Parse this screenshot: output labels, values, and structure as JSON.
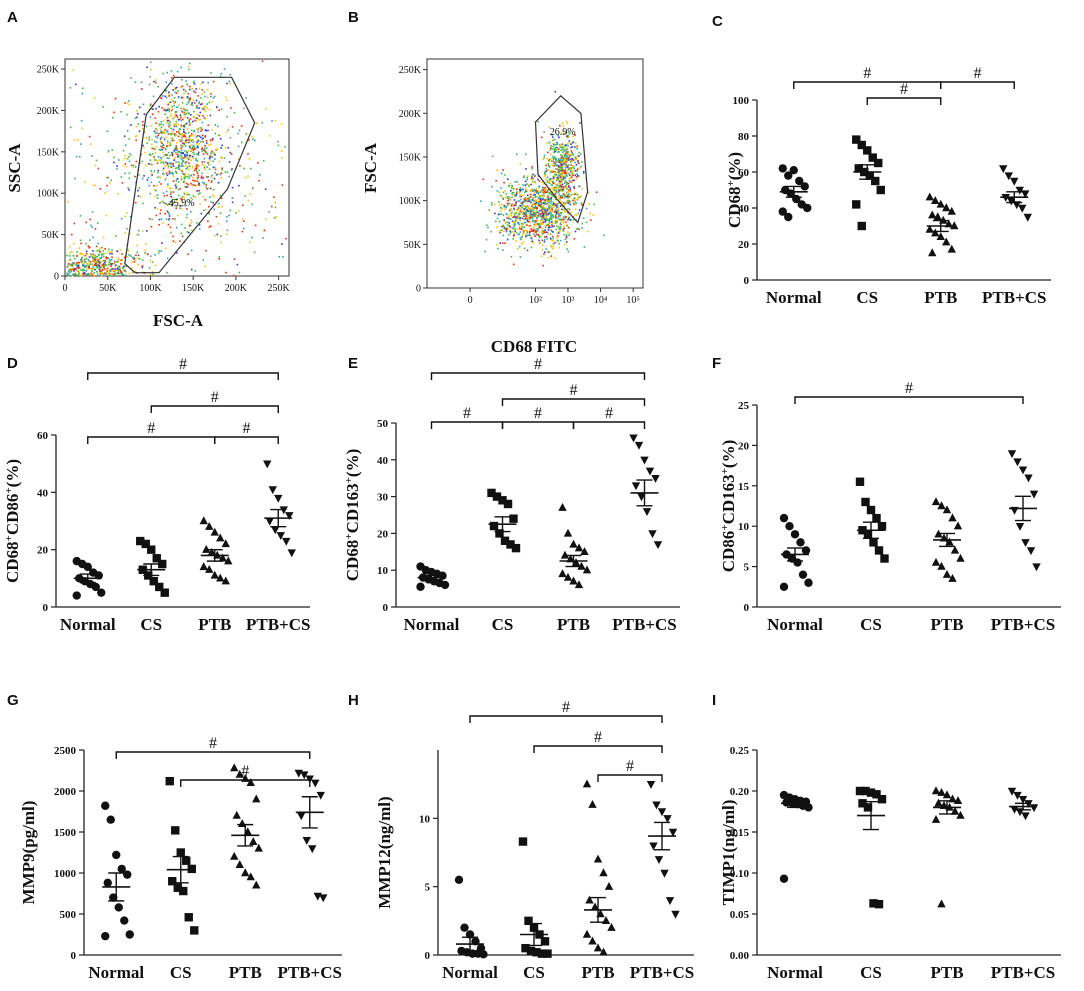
{
  "figure": {
    "panel_count": 9
  },
  "chart_data": [
    {
      "id": "A",
      "type": "scatter",
      "subtype": "flow-density",
      "xlabel": "FSC-A",
      "ylabel": "SSC-A",
      "xlim": [
        0,
        262144
      ],
      "ylim": [
        0,
        262144
      ],
      "x_ticks": [
        "0",
        "50K",
        "100K",
        "150K",
        "200K",
        "250K"
      ],
      "x_tick_values": [
        0,
        50000,
        100000,
        150000,
        200000,
        250000
      ],
      "y_ticks": [
        "0",
        "50K",
        "100K",
        "150K",
        "200K",
        "250K"
      ],
      "y_tick_values": [
        0,
        50000,
        100000,
        150000,
        200000,
        250000
      ],
      "gate_label": "45.9%",
      "gate_polygon": [
        [
          70000,
          15000
        ],
        [
          95000,
          195000
        ],
        [
          128000,
          240000
        ],
        [
          195000,
          240000
        ],
        [
          222000,
          185000
        ],
        [
          190000,
          105000
        ],
        [
          110000,
          4000
        ],
        [
          82000,
          4000
        ]
      ],
      "populations": [
        {
          "cx": 135000,
          "cy": 160000,
          "sx": 25000,
          "sy": 45000,
          "n": 900
        },
        {
          "cx": 30000,
          "cy": 10000,
          "sx": 30000,
          "sy": 12000,
          "n": 700
        },
        {
          "cx": 130000,
          "cy": 110000,
          "sx": 90000,
          "sy": 80000,
          "n": 500
        }
      ]
    },
    {
      "id": "B",
      "type": "scatter",
      "subtype": "flow-density",
      "xlabel": "CD68 FITC",
      "ylabel": "FSC-A",
      "xscale": "log",
      "xlim": [
        -20,
        200000
      ],
      "ylim": [
        0,
        262144
      ],
      "x_ticks": [
        "0",
        "10²",
        "10³",
        "10⁴",
        "10⁵"
      ],
      "x_tick_values": [
        0,
        100,
        1000,
        10000,
        100000
      ],
      "y_ticks": [
        "0",
        "50K",
        "100K",
        "150K",
        "200K",
        "250K"
      ],
      "y_tick_values": [
        0,
        50000,
        100000,
        150000,
        200000,
        250000
      ],
      "gate_label": "26.9%",
      "gate_polygon": [
        [
          100,
          190000
        ],
        [
          600,
          220000
        ],
        [
          2500,
          200000
        ],
        [
          4000,
          110000
        ],
        [
          2000,
          75000
        ],
        [
          500,
          100000
        ],
        [
          120,
          130000
        ]
      ],
      "populations": [
        {
          "cx": 110,
          "cy": 88000,
          "sx": 0.65,
          "sy": 20000,
          "n": 1100
        },
        {
          "cx": 650,
          "cy": 140000,
          "sx": 0.25,
          "sy": 20000,
          "n": 500
        }
      ]
    },
    {
      "id": "C",
      "type": "scatter",
      "subtype": "dot-plot",
      "ylabel_main": "CD68",
      "ylabel_sup": "+",
      "ylabel_unit": "(%)",
      "categories": [
        "Normal",
        "CS",
        "PTB",
        "PTB+CS"
      ],
      "ylim": [
        0,
        100
      ],
      "yticks": [
        0,
        20,
        40,
        60,
        80,
        100
      ],
      "series": [
        {
          "name": "Normal",
          "marker": "circle",
          "values": [
            62,
            58,
            61,
            55,
            52,
            50,
            48,
            45,
            42,
            40,
            38,
            35
          ],
          "mean": 49,
          "sem": 3
        },
        {
          "name": "CS",
          "marker": "square",
          "values": [
            78,
            75,
            72,
            68,
            65,
            62,
            60,
            58,
            55,
            50,
            42,
            30
          ],
          "mean": 60,
          "sem": 4
        },
        {
          "name": "PTB",
          "marker": "triangle-up",
          "values": [
            46,
            44,
            42,
            40,
            38,
            36,
            35,
            33,
            31,
            30,
            28,
            26,
            24,
            21,
            17,
            15
          ],
          "mean": 30,
          "sem": 3
        },
        {
          "name": "PTB+CS",
          "marker": "triangle-down",
          "values": [
            62,
            58,
            55,
            50,
            48,
            46,
            44,
            42,
            40,
            35
          ],
          "mean": 46,
          "sem": 3
        }
      ],
      "significance": [
        {
          "from": 0,
          "to": 2,
          "label": "#",
          "level": 1
        },
        {
          "from": 1,
          "to": 2,
          "label": "#",
          "level": 0
        },
        {
          "from": 2,
          "to": 3,
          "label": "#",
          "level": 1
        }
      ]
    },
    {
      "id": "D",
      "type": "scatter",
      "subtype": "dot-plot",
      "ylabel_main": "CD68",
      "ylabel_sup": "+",
      "ylabel_main2": "CD86",
      "ylabel_sup2": "+",
      "ylabel_unit": "(%)",
      "categories": [
        "Normal",
        "CS",
        "PTB",
        "PTB+CS"
      ],
      "ylim": [
        0,
        60
      ],
      "yticks": [
        0,
        20,
        40,
        60
      ],
      "series": [
        {
          "name": "Normal",
          "marker": "circle",
          "values": [
            16,
            15,
            14,
            12,
            11,
            10,
            9,
            8,
            7,
            5,
            4
          ],
          "mean": 10,
          "sem": 1.5
        },
        {
          "name": "CS",
          "marker": "square",
          "values": [
            23,
            22,
            20,
            17,
            15,
            13,
            11,
            9,
            7,
            5
          ],
          "mean": 13,
          "sem": 2
        },
        {
          "name": "PTB",
          "marker": "triangle-up",
          "values": [
            30,
            28,
            26,
            24,
            22,
            20,
            19,
            18,
            17,
            16,
            14,
            13,
            11,
            10,
            9
          ],
          "mean": 18,
          "sem": 2
        },
        {
          "name": "PTB+CS",
          "marker": "triangle-down",
          "values": [
            50,
            41,
            38,
            34,
            32,
            30,
            27,
            25,
            23,
            19
          ],
          "mean": 31,
          "sem": 3
        }
      ],
      "significance": [
        {
          "from": 0,
          "to": 3,
          "label": "#",
          "level": 2
        },
        {
          "from": 1,
          "to": 3,
          "label": "#",
          "level": 1
        },
        {
          "from": 0,
          "to": 2,
          "label": "#",
          "level": 0
        },
        {
          "from": 2,
          "to": 3,
          "label": "#",
          "level": 0
        }
      ]
    },
    {
      "id": "E",
      "type": "scatter",
      "subtype": "dot-plot",
      "ylabel_main": "CD68",
      "ylabel_sup": "+",
      "ylabel_main2": "CD163",
      "ylabel_sup2": "+",
      "ylabel_unit": "(%)",
      "categories": [
        "Normal",
        "CS",
        "PTB",
        "PTB+CS"
      ],
      "ylim": [
        0,
        50
      ],
      "yticks": [
        0,
        10,
        20,
        30,
        40,
        50
      ],
      "series": [
        {
          "name": "Normal",
          "marker": "circle",
          "values": [
            11,
            10,
            9.5,
            9,
            8.5,
            8,
            7.5,
            7,
            6.5,
            6,
            5.5
          ],
          "mean": 8,
          "sem": 0.6
        },
        {
          "name": "CS",
          "marker": "square",
          "values": [
            31,
            30,
            29,
            28,
            24,
            22,
            20,
            18,
            17,
            16
          ],
          "mean": 22.5,
          "sem": 2
        },
        {
          "name": "PTB",
          "marker": "triangle-up",
          "values": [
            27,
            20,
            17,
            16,
            15,
            14,
            13,
            12,
            11,
            10,
            9,
            8,
            7,
            6
          ],
          "mean": 12.5,
          "sem": 1.5
        },
        {
          "name": "PTB+CS",
          "marker": "triangle-down",
          "values": [
            46,
            44,
            40,
            37,
            35,
            33,
            30,
            26,
            20,
            17
          ],
          "mean": 31,
          "sem": 3.5
        }
      ],
      "significance": [
        {
          "from": 0,
          "to": 3,
          "label": "#",
          "level": 2
        },
        {
          "from": 1,
          "to": 3,
          "label": "#",
          "level": 1
        },
        {
          "from": 0,
          "to": 1,
          "label": "#",
          "level": 0
        },
        {
          "from": 1,
          "to": 2,
          "label": "#",
          "level": 0
        },
        {
          "from": 2,
          "to": 3,
          "label": "#",
          "level": 0
        }
      ]
    },
    {
      "id": "F",
      "type": "scatter",
      "subtype": "dot-plot",
      "ylabel_main": "CD86",
      "ylabel_sup": "+",
      "ylabel_main2": "CD163",
      "ylabel_sup2": "+",
      "ylabel_unit": "(%)",
      "categories": [
        "Normal",
        "CS",
        "PTB",
        "PTB+CS"
      ],
      "ylim": [
        0,
        25
      ],
      "yticks": [
        0,
        5,
        10,
        15,
        20,
        25
      ],
      "series": [
        {
          "name": "Normal",
          "marker": "circle",
          "values": [
            11,
            10,
            9,
            8,
            7,
            6.5,
            6,
            5.5,
            4,
            3,
            2.5
          ],
          "mean": 6.5,
          "sem": 0.8
        },
        {
          "name": "CS",
          "marker": "square",
          "values": [
            15.5,
            13,
            12,
            11,
            10,
            9.5,
            9,
            8,
            7,
            6
          ],
          "mean": 9.5,
          "sem": 1
        },
        {
          "name": "PTB",
          "marker": "triangle-up",
          "values": [
            13,
            12.5,
            12,
            11,
            10,
            9,
            8.5,
            8,
            7,
            6,
            5.5,
            5,
            4,
            3.5
          ],
          "mean": 8.3,
          "sem": 0.8
        },
        {
          "name": "PTB+CS",
          "marker": "triangle-down",
          "values": [
            19,
            18,
            17,
            16,
            14,
            12,
            10,
            8,
            7,
            5
          ],
          "mean": 12.2,
          "sem": 1.5
        }
      ],
      "significance": [
        {
          "from": 0,
          "to": 3,
          "label": "#",
          "level": 0
        }
      ]
    },
    {
      "id": "G",
      "type": "scatter",
      "subtype": "dot-plot",
      "ylabel_main": "MMP9",
      "ylabel_unit": "(pg/ml)",
      "categories": [
        "Normal",
        "CS",
        "PTB",
        "PTB+CS"
      ],
      "ylim": [
        0,
        2500
      ],
      "yticks": [
        0,
        500,
        1000,
        1500,
        2000,
        2500
      ],
      "series": [
        {
          "name": "Normal",
          "marker": "circle",
          "values": [
            1820,
            1650,
            1220,
            1050,
            980,
            880,
            700,
            580,
            420,
            250,
            230
          ],
          "mean": 830,
          "sem": 170
        },
        {
          "name": "CS",
          "marker": "square",
          "values": [
            2120,
            1520,
            1250,
            1150,
            1050,
            900,
            820,
            780,
            460,
            300
          ],
          "mean": 1040,
          "sem": 160
        },
        {
          "name": "PTB",
          "marker": "triangle-up",
          "values": [
            2280,
            2200,
            2150,
            2100,
            1900,
            1700,
            1600,
            1500,
            1380,
            1300,
            1200,
            1100,
            1000,
            950,
            850
          ],
          "mean": 1460,
          "sem": 130
        },
        {
          "name": "PTB+CS",
          "marker": "triangle-down",
          "values": [
            2220,
            2200,
            2150,
            2100,
            1950,
            1700,
            1400,
            1300,
            720,
            700
          ],
          "mean": 1740,
          "sem": 190
        }
      ],
      "significance": [
        {
          "from": 0,
          "to": 3,
          "label": "#",
          "level": 1
        },
        {
          "from": 1,
          "to": 3,
          "label": "#",
          "level": 0
        }
      ]
    },
    {
      "id": "H",
      "type": "scatter",
      "subtype": "dot-plot",
      "ylabel_main": "MMP12",
      "ylabel_unit": "(ng/ml)",
      "categories": [
        "Normal",
        "CS",
        "PTB",
        "PTB+CS"
      ],
      "ylim": [
        0,
        15
      ],
      "yticks": [
        0,
        5,
        10
      ],
      "series": [
        {
          "name": "Normal",
          "marker": "circle",
          "values": [
            5.5,
            2,
            1.5,
            1,
            0.5,
            0.3,
            0.2,
            0.1,
            0.1,
            0.05
          ],
          "mean": 0.8,
          "sem": 0.5
        },
        {
          "name": "CS",
          "marker": "square",
          "values": [
            8.3,
            2.5,
            2,
            1.5,
            1,
            0.5,
            0.3,
            0.2,
            0.1,
            0.1
          ],
          "mean": 1.5,
          "sem": 0.8
        },
        {
          "name": "PTB",
          "marker": "triangle-up",
          "values": [
            12.5,
            11,
            7,
            6,
            5,
            4,
            3.5,
            3,
            2.5,
            2,
            1.5,
            1,
            0.5,
            0.2
          ],
          "mean": 3.3,
          "sem": 0.9
        },
        {
          "name": "PTB+CS",
          "marker": "triangle-down",
          "values": [
            12.5,
            11,
            10.5,
            10,
            9,
            8,
            7,
            6,
            4,
            3
          ],
          "mean": 8.7,
          "sem": 1
        },
        {
          "name": "_",
          "marker": "none",
          "values": []
        }
      ],
      "significance": [
        {
          "from": 0,
          "to": 3,
          "label": "#",
          "level": 2
        },
        {
          "from": 1,
          "to": 3,
          "label": "#",
          "level": 1
        },
        {
          "from": 2,
          "to": 3,
          "label": "#",
          "level": 0
        }
      ]
    },
    {
      "id": "I",
      "type": "scatter",
      "subtype": "dot-plot",
      "ylabel_main": "TIMP1",
      "ylabel_unit": "(ng/ml)",
      "categories": [
        "Normal",
        "CS",
        "PTB",
        "PTB+CS"
      ],
      "ylim": [
        0,
        0.25
      ],
      "yticks": [
        0.0,
        0.05,
        0.1,
        0.15,
        0.2,
        0.25
      ],
      "ytick_labels": [
        "0.00",
        "0.05",
        "0.10",
        "0.15",
        "0.20",
        "0.25"
      ],
      "series": [
        {
          "name": "Normal",
          "marker": "circle",
          "values": [
            0.195,
            0.192,
            0.19,
            0.188,
            0.187,
            0.186,
            0.185,
            0.184,
            0.182,
            0.18,
            0.093
          ],
          "mean": 0.185,
          "sem": 0.005
        },
        {
          "name": "CS",
          "marker": "square",
          "values": [
            0.2,
            0.2,
            0.198,
            0.196,
            0.19,
            0.185,
            0.18,
            0.063,
            0.062
          ],
          "mean": 0.17,
          "sem": 0.017
        },
        {
          "name": "PTB",
          "marker": "triangle-up",
          "values": [
            0.2,
            0.198,
            0.195,
            0.19,
            0.188,
            0.185,
            0.182,
            0.18,
            0.175,
            0.17,
            0.165,
            0.062
          ],
          "mean": 0.18,
          "sem": 0.008
        },
        {
          "name": "PTB+CS",
          "marker": "triangle-down",
          "values": [
            0.2,
            0.195,
            0.19,
            0.185,
            0.18,
            0.178,
            0.175,
            0.17
          ],
          "mean": 0.181,
          "sem": 0.004
        }
      ],
      "significance": []
    }
  ]
}
